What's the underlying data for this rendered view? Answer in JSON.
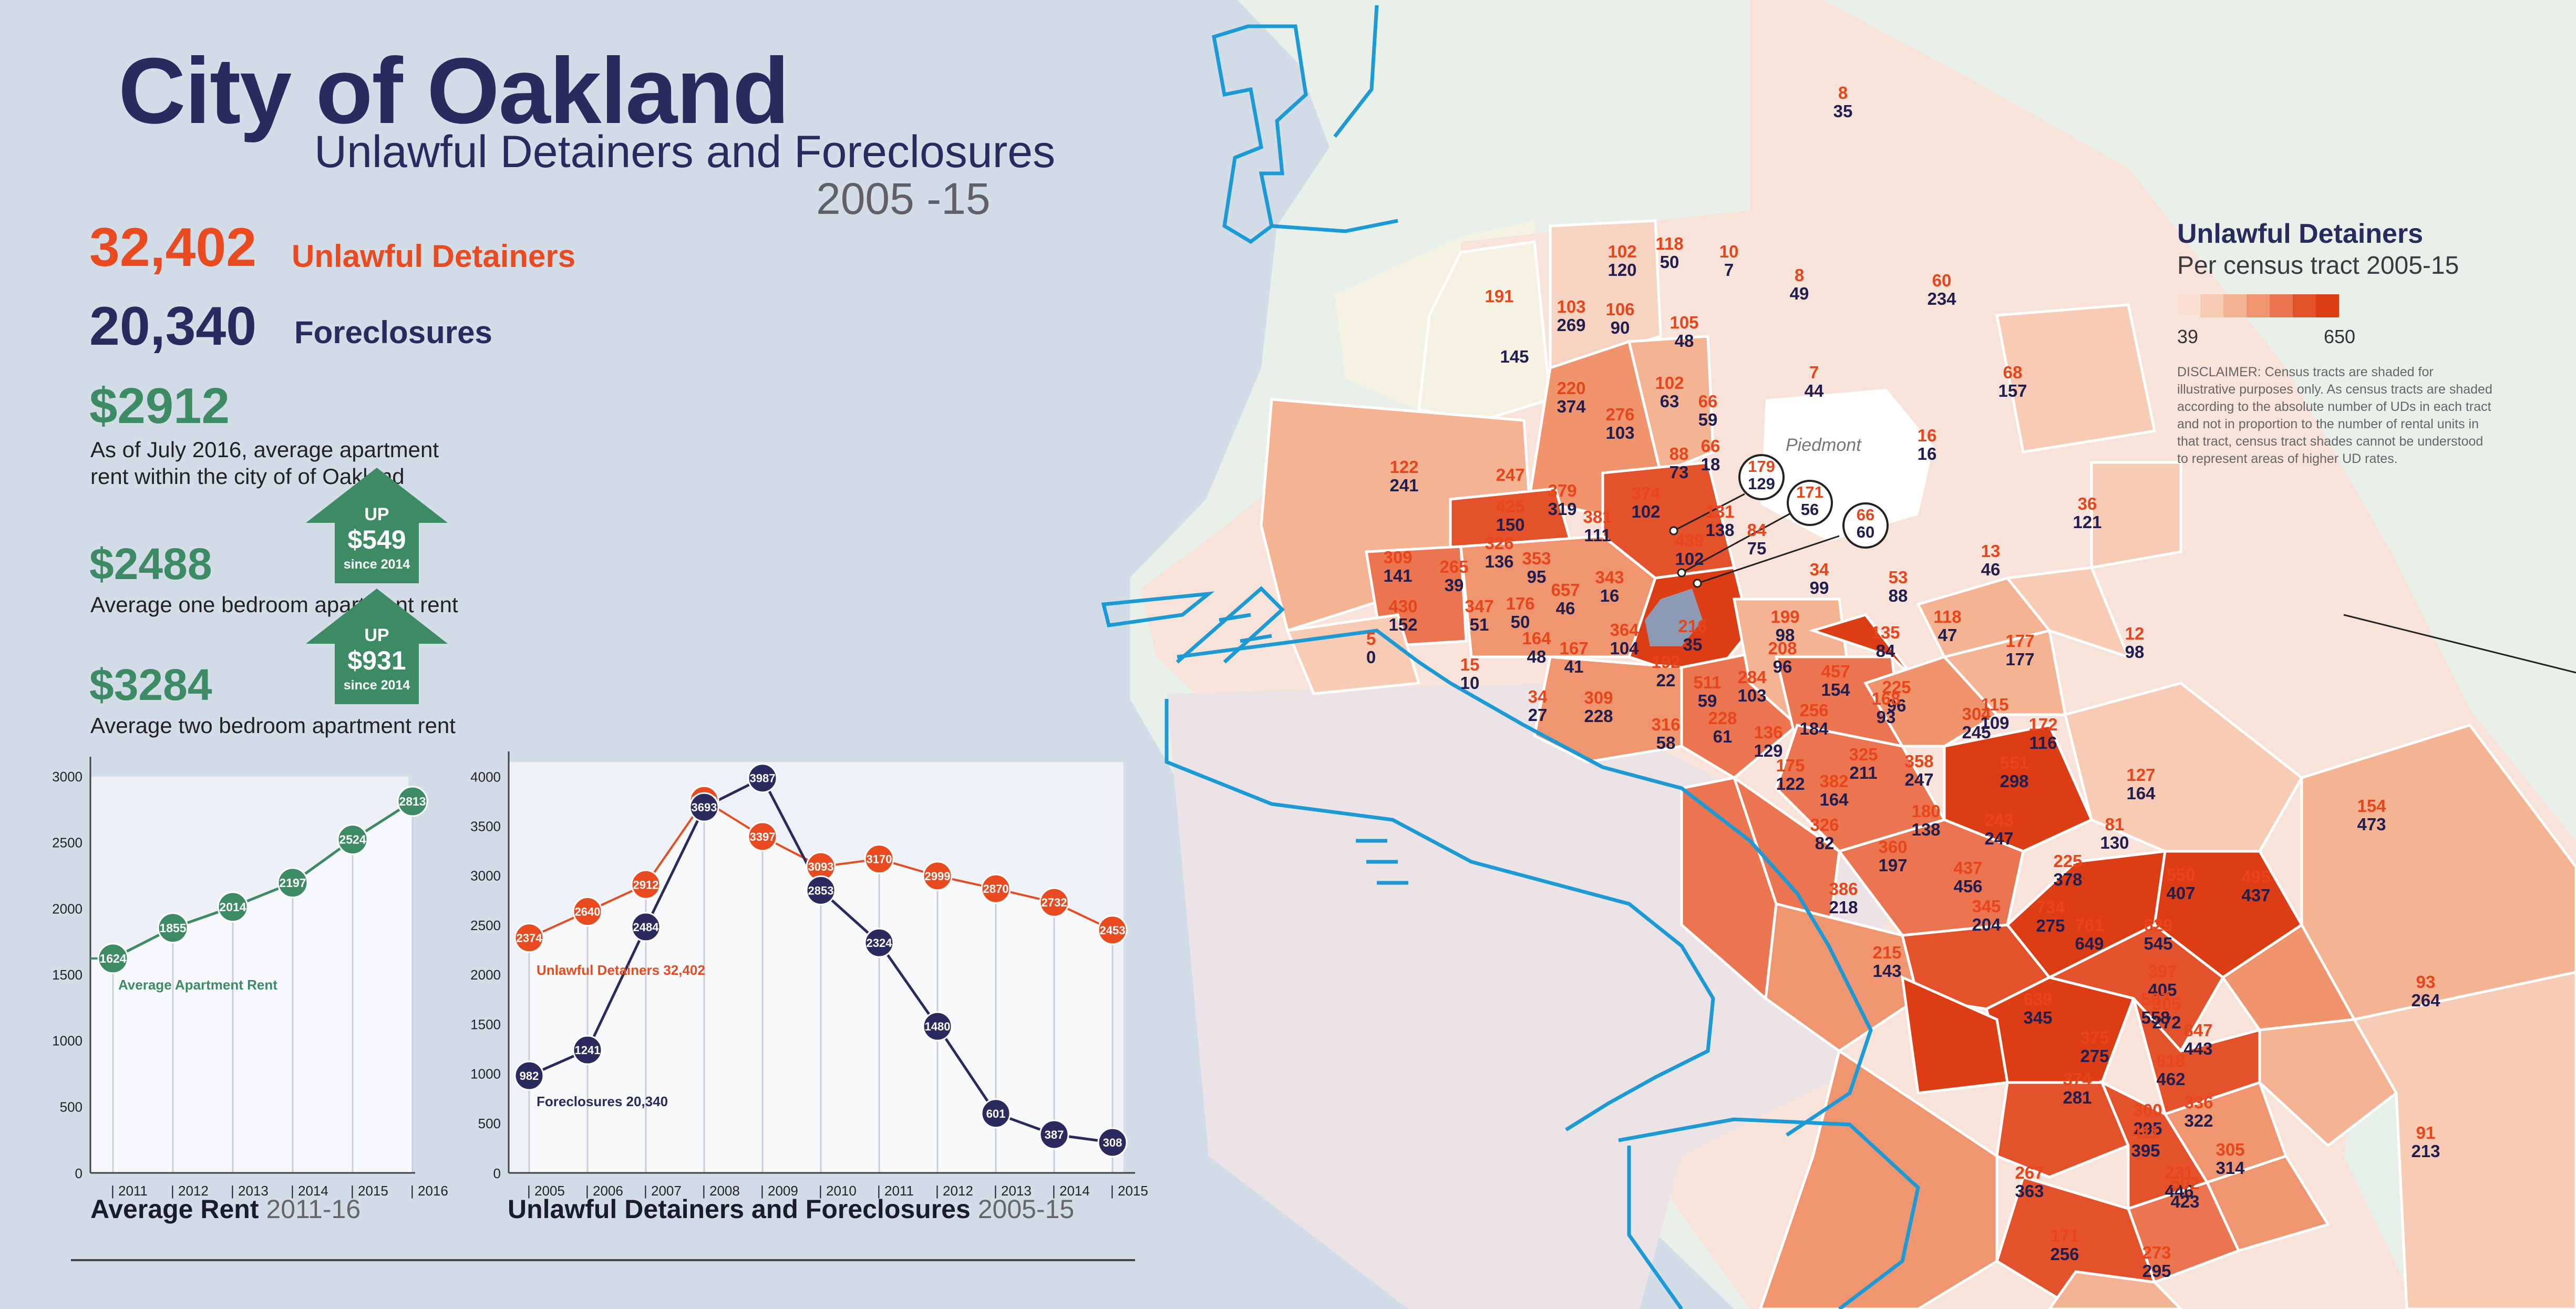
{
  "header": {
    "title": "City of Oakland",
    "subtitle": "Unlawful Detainers and Foreclosures",
    "years": "2005 -15"
  },
  "stats": {
    "ud_number": "32,402",
    "ud_label": "Unlawful Detainers",
    "fc_number": "20,340",
    "fc_label": "Foreclosures",
    "avg_rent": "$2912",
    "avg_rent_note_1": "As of July 2016, average apartment",
    "avg_rent_note_2": "rent within the city of of Oakland",
    "one_bed": "$2488",
    "one_bed_note": "Average one bedroom apartment rent",
    "one_bed_up": {
      "up": "UP",
      "amount": "$549",
      "since": "since 2014"
    },
    "two_bed": "$3284",
    "two_bed_note": "Average two bedroom apartment rent",
    "two_bed_up": {
      "up": "UP",
      "amount": "$931",
      "since": "since 2014"
    }
  },
  "colors": {
    "background": "#d3dde8",
    "navy": "#2b2a5e",
    "orange": "#ea4a1f",
    "green": "#3d8b64",
    "water_line": "#1b9ad6",
    "land_default": "#f8e8e1",
    "legend_ramp": [
      "#fbe0d4",
      "#f8cbb4",
      "#f4b393",
      "#ef9671",
      "#ea7550",
      "#e4522c",
      "#dd3d15"
    ]
  },
  "legend": {
    "title": "Unlawful Detainers",
    "subtitle": "Per census tract 2005-15",
    "min": "39",
    "max": "650",
    "disclaimer": "DISCLAIMER: Census tracts are shaded for illustrative purposes only. As census tracts are shaded according to the absolute number of UDs in each tract and not in proportion to the number of rental units in that tract, census tract shades cannot be understood to represent areas of higher UD rates."
  },
  "map": {
    "place_label": "Piedmont",
    "tracts": [
      {
        "ud": "8",
        "fc": "35"
      },
      {
        "ud": "102",
        "fc": "120"
      },
      {
        "ud": "118",
        "fc": "50"
      },
      {
        "ud": "10",
        "fc": "7"
      },
      {
        "ud": "8",
        "fc": "49"
      },
      {
        "ud": "60",
        "fc": "234"
      },
      {
        "ud": "191",
        "fc": ""
      },
      {
        "ud": "",
        "fc": "145"
      },
      {
        "ud": "103",
        "fc": "269"
      },
      {
        "ud": "106",
        "fc": "90"
      },
      {
        "ud": "105",
        "fc": "48"
      },
      {
        "ud": "7",
        "fc": "44"
      },
      {
        "ud": "68",
        "fc": "157"
      },
      {
        "ud": "220",
        "fc": "374"
      },
      {
        "ud": "102",
        "fc": "63"
      },
      {
        "ud": "276",
        "fc": "103"
      },
      {
        "ud": "66",
        "fc": "59"
      },
      {
        "ud": "122",
        "fc": "241"
      },
      {
        "ud": "16",
        "fc": "16"
      },
      {
        "ud": "66",
        "fc": "18"
      },
      {
        "ud": "88",
        "fc": "73"
      },
      {
        "ud": "247",
        "fc": ""
      },
      {
        "ud": "379",
        "fc": "319"
      },
      {
        "ud": "374",
        "fc": "102"
      },
      {
        "ud": "425",
        "fc": "150"
      },
      {
        "ud": "381",
        "fc": "111"
      },
      {
        "ud": "131",
        "fc": "138"
      },
      {
        "ud": "36",
        "fc": "121"
      },
      {
        "ud": "326",
        "fc": "136"
      },
      {
        "ud": "84",
        "fc": "75"
      },
      {
        "ud": "439",
        "fc": "102"
      },
      {
        "ud": "13",
        "fc": "46"
      },
      {
        "ud": "309",
        "fc": "141"
      },
      {
        "ud": "265",
        "fc": "39"
      },
      {
        "ud": "353",
        "fc": "95"
      },
      {
        "ud": "343",
        "fc": "16"
      },
      {
        "ud": "34",
        "fc": "99"
      },
      {
        "ud": "53",
        "fc": "88"
      },
      {
        "ud": "430",
        "fc": "152"
      },
      {
        "ud": "347",
        "fc": "51"
      },
      {
        "ud": "176",
        "fc": "50"
      },
      {
        "ud": "657",
        "fc": "46"
      },
      {
        "ud": "118",
        "fc": "47"
      },
      {
        "ud": "199",
        "fc": "98"
      },
      {
        "ud": "364",
        "fc": "104"
      },
      {
        "ud": "216",
        "fc": "35"
      },
      {
        "ud": "135",
        "fc": "84"
      },
      {
        "ud": "177",
        "fc": "177"
      },
      {
        "ud": "5",
        "fc": "0"
      },
      {
        "ud": "164",
        "fc": "48"
      },
      {
        "ud": "167",
        "fc": "41"
      },
      {
        "ud": "12",
        "fc": "98"
      },
      {
        "ud": "208",
        "fc": "96"
      },
      {
        "ud": "15",
        "fc": "10"
      },
      {
        "ud": "192",
        "fc": "22"
      },
      {
        "ud": "457",
        "fc": "154"
      },
      {
        "ud": "511",
        "fc": "59"
      },
      {
        "ud": "284",
        "fc": "103"
      },
      {
        "ud": "225",
        "fc": "96"
      },
      {
        "ud": "168",
        "fc": "93"
      },
      {
        "ud": "34",
        "fc": "27"
      },
      {
        "ud": "309",
        "fc": "228"
      },
      {
        "ud": "115",
        "fc": "109"
      },
      {
        "ud": "256",
        "fc": "184"
      },
      {
        "ud": "304",
        "fc": "245"
      },
      {
        "ud": "228",
        "fc": "61"
      },
      {
        "ud": "136",
        "fc": "129"
      },
      {
        "ud": "316",
        "fc": "58"
      },
      {
        "ud": "172",
        "fc": "116"
      },
      {
        "ud": "325",
        "fc": "211"
      },
      {
        "ud": "551",
        "fc": "298"
      },
      {
        "ud": "358",
        "fc": "247"
      },
      {
        "ud": "175",
        "fc": "122"
      },
      {
        "ud": "127",
        "fc": "164"
      },
      {
        "ud": "382",
        "fc": "164"
      },
      {
        "ud": "180",
        "fc": "138"
      },
      {
        "ud": "154",
        "fc": "473"
      },
      {
        "ud": "243",
        "fc": "247"
      },
      {
        "ud": "326",
        "fc": "82"
      },
      {
        "ud": "81",
        "fc": "130"
      },
      {
        "ud": "360",
        "fc": "197"
      },
      {
        "ud": "225",
        "fc": "378"
      },
      {
        "ud": "550",
        "fc": "407"
      },
      {
        "ud": "437",
        "fc": "456"
      },
      {
        "ud": "386",
        "fc": "218"
      },
      {
        "ud": "495",
        "fc": "437"
      },
      {
        "ud": "345",
        "fc": "204"
      },
      {
        "ud": "734",
        "fc": "275"
      },
      {
        "ud": "761",
        "fc": "649"
      },
      {
        "ud": "629",
        "fc": "545"
      },
      {
        "ud": "215",
        "fc": "143"
      },
      {
        "ud": "93",
        "fc": "264"
      },
      {
        "ud": "397",
        "fc": "405"
      },
      {
        "ud": "639",
        "fc": "345"
      },
      {
        "ud": "507",
        "fc": "558"
      },
      {
        "ud": "305",
        "fc": "272"
      },
      {
        "ud": "847",
        "fc": "443"
      },
      {
        "ud": "375",
        "fc": "275"
      },
      {
        "ud": "618",
        "fc": "462"
      },
      {
        "ud": "374",
        "fc": "281"
      },
      {
        "ud": "336",
        "fc": "322"
      },
      {
        "ud": "300",
        "fc": "295"
      },
      {
        "ud": "91",
        "fc": "213"
      },
      {
        "ud": "411",
        "fc": "395"
      },
      {
        "ud": "305",
        "fc": "314"
      },
      {
        "ud": "231",
        "fc": "446"
      },
      {
        "ud": "267",
        "fc": "363"
      },
      {
        "ud": "502",
        "fc": "423"
      },
      {
        "ud": "171",
        "fc": "256"
      },
      {
        "ud": "273",
        "fc": "295"
      }
    ],
    "callouts": [
      {
        "ud": "179",
        "fc": "129"
      },
      {
        "ud": "171",
        "fc": "56"
      },
      {
        "ud": "66",
        "fc": "60"
      }
    ]
  },
  "rent_chart": {
    "caption": "Average Rent",
    "caption_years": "2011-16",
    "chart_data": {
      "type": "area",
      "x": [
        "2011",
        "2012",
        "2013",
        "2014",
        "2015",
        "2016"
      ],
      "series": [
        {
          "name": "Average Apartment Rent",
          "values": [
            1624,
            1855,
            2014,
            2197,
            2524,
            2813
          ]
        }
      ],
      "yticks": [
        "500",
        "1000",
        "1500",
        "2000",
        "2500",
        "3000"
      ],
      "ylim": [
        0,
        3000
      ],
      "zero_label": "0",
      "series_label": "Average Apartment Rent"
    }
  },
  "ud_chart": {
    "caption": "Unlawful Detainers and Foreclosures",
    "caption_years": "2005-15",
    "chart_data": {
      "type": "line",
      "x": [
        "2005",
        "2006",
        "2007",
        "2008",
        "2009",
        "2010",
        "2011",
        "2012",
        "2013",
        "2014",
        "2015"
      ],
      "series": [
        {
          "name": "Unlawful Detainers",
          "values": [
            2374,
            2640,
            2912,
            3762,
            3397,
            3093,
            3170,
            2999,
            2870,
            2732,
            2453
          ]
        },
        {
          "name": "Foreclosures",
          "values": [
            982,
            1241,
            2484,
            3693,
            3987,
            2853,
            2324,
            1480,
            601,
            387,
            308
          ]
        }
      ],
      "yticks": [
        "500",
        "1000",
        "1500",
        "2000",
        "2500",
        "3000",
        "3500",
        "4000"
      ],
      "ylim": [
        0,
        4150
      ],
      "zero_label": "0",
      "ud_series_label": "Unlawful Detainers",
      "ud_series_total": "32,402",
      "fc_series_label": "Foreclosures",
      "fc_series_total": "20,340"
    }
  }
}
